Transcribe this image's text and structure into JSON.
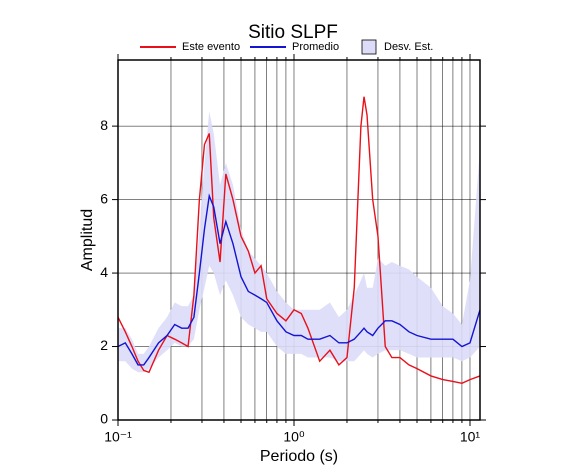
{
  "chart_data": {
    "type": "line",
    "title": "Sitio SLPF",
    "x_label": "Periodo (s)",
    "y_label": "Amplitud",
    "log_x": true,
    "grid": true,
    "legend": "top",
    "x": [
      0.1,
      0.11,
      0.12,
      0.13,
      0.14,
      0.15,
      0.17,
      0.19,
      0.21,
      0.23,
      0.25,
      0.27,
      0.29,
      0.31,
      0.33,
      0.35,
      0.38,
      0.41,
      0.45,
      0.5,
      0.55,
      0.6,
      0.65,
      0.7,
      0.8,
      0.9,
      1.0,
      1.1,
      1.2,
      1.4,
      1.6,
      1.8,
      2.0,
      2.2,
      2.4,
      2.5,
      2.6,
      2.8,
      3.0,
      3.3,
      3.6,
      4.0,
      4.5,
      5,
      6,
      7,
      8,
      9,
      10,
      11.4
    ],
    "series": [
      {
        "name": "Este evento",
        "color": "#e8101a",
        "values": [
          2.8,
          2.4,
          2.0,
          1.6,
          1.35,
          1.3,
          1.9,
          2.3,
          2.2,
          2.1,
          2.0,
          3.4,
          6.0,
          7.5,
          7.8,
          5.5,
          4.3,
          6.7,
          6.0,
          5.0,
          4.6,
          4.0,
          4.2,
          3.3,
          2.9,
          2.7,
          3.0,
          2.9,
          2.5,
          1.6,
          1.9,
          1.5,
          1.7,
          3.6,
          8.0,
          8.8,
          8.3,
          6.0,
          5.0,
          2.0,
          1.7,
          1.7,
          1.5,
          1.4,
          1.2,
          1.1,
          1.05,
          1.0,
          1.1,
          1.2
        ]
      },
      {
        "name": "Promedio",
        "color": "#1414d2",
        "values": [
          2.0,
          2.1,
          1.8,
          1.5,
          1.5,
          1.7,
          2.1,
          2.3,
          2.6,
          2.5,
          2.5,
          2.8,
          4.0,
          5.2,
          6.1,
          5.8,
          4.8,
          5.4,
          4.8,
          3.9,
          3.5,
          3.4,
          3.3,
          3.2,
          2.7,
          2.4,
          2.3,
          2.3,
          2.2,
          2.2,
          2.3,
          2.1,
          2.1,
          2.2,
          2.4,
          2.5,
          2.4,
          2.3,
          2.5,
          2.7,
          2.7,
          2.6,
          2.4,
          2.3,
          2.2,
          2.2,
          2.2,
          2.0,
          2.1,
          3.0
        ]
      }
    ],
    "band": {
      "name": "Desv. Est.",
      "color": "#dcdcf8",
      "lower": [
        1.6,
        1.6,
        1.4,
        1.3,
        1.3,
        1.4,
        1.7,
        1.9,
        2.1,
        2.0,
        2.0,
        2.2,
        3.0,
        3.6,
        4.2,
        4.0,
        3.4,
        3.8,
        3.4,
        2.8,
        2.6,
        2.5,
        2.4,
        2.4,
        2.0,
        1.8,
        1.8,
        1.8,
        1.7,
        1.7,
        1.7,
        1.6,
        1.6,
        1.6,
        1.8,
        1.9,
        1.8,
        1.7,
        1.8,
        1.9,
        1.9,
        1.9,
        1.8,
        1.7,
        1.7,
        1.7,
        1.7,
        1.6,
        1.7,
        2.0
      ],
      "upper": [
        2.5,
        2.5,
        2.2,
        1.8,
        1.8,
        2.0,
        2.5,
        2.8,
        3.2,
        3.1,
        3.1,
        3.4,
        5.2,
        7.0,
        8.4,
        7.8,
        6.4,
        7.0,
        6.4,
        5.2,
        4.6,
        4.4,
        4.2,
        4.0,
        3.5,
        3.2,
        3.0,
        3.0,
        3.0,
        3.0,
        3.2,
        2.8,
        3.0,
        3.4,
        3.8,
        4.0,
        3.6,
        3.6,
        4.4,
        4.2,
        4.3,
        4.2,
        4.1,
        3.9,
        3.6,
        3.1,
        2.9,
        2.6,
        3.8,
        7.4
      ]
    },
    "xlim": [
      0.1,
      11.4
    ],
    "ylim": [
      0,
      9.8
    ],
    "xticks": [
      {
        "value": 0.1,
        "label": "10⁻¹"
      },
      {
        "value": 1,
        "label": "10⁰"
      },
      {
        "value": 10,
        "label": "10¹"
      }
    ],
    "xgrid": [
      0.2,
      0.3,
      0.4,
      0.5,
      0.6,
      0.7,
      0.8,
      0.9,
      2,
      3,
      4,
      5,
      6,
      7,
      8,
      9
    ],
    "yticks": [
      0,
      2,
      4,
      6,
      8
    ]
  }
}
